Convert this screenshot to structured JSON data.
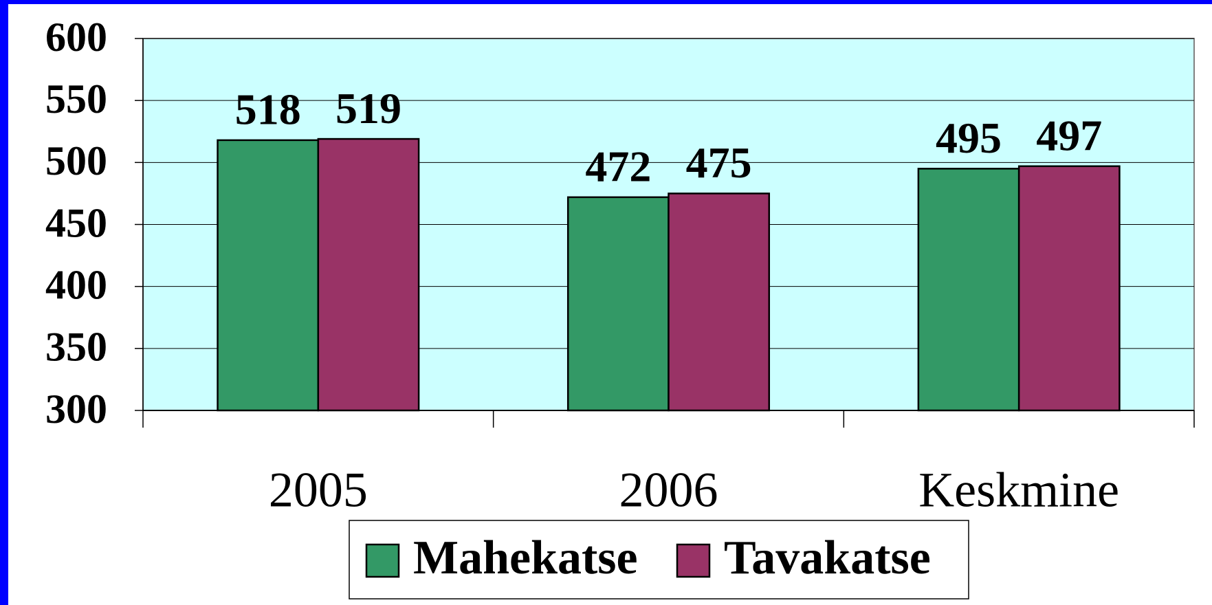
{
  "chart_data": {
    "type": "bar",
    "categories": [
      "2005",
      "2006",
      "Keskmine"
    ],
    "series": [
      {
        "name": "Mahekatse",
        "color": "#339966",
        "values": [
          518,
          472,
          495
        ]
      },
      {
        "name": "Tavakatse",
        "color": "#993366",
        "values": [
          519,
          475,
          497
        ]
      }
    ],
    "ylim": [
      300,
      600
    ],
    "yticks": [
      300,
      350,
      400,
      450,
      500,
      550,
      600
    ],
    "grid": true,
    "legend": "bottom",
    "plot_background": "#ccffff"
  }
}
